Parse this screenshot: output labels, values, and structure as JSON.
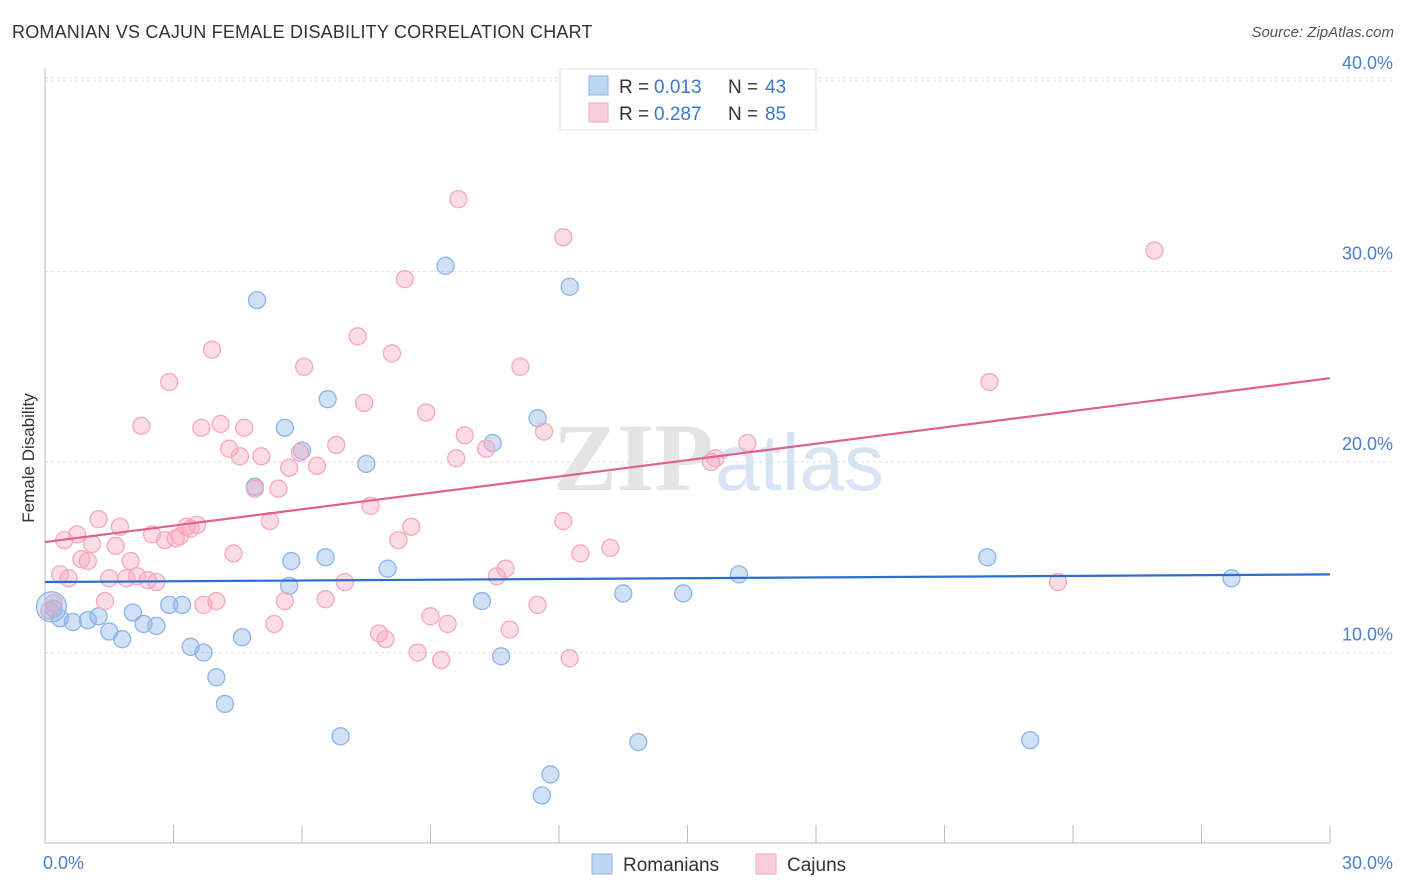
{
  "chart_data": {
    "type": "scatter",
    "title": "ROMANIAN VS CAJUN FEMALE DISABILITY CORRELATION CHART",
    "source": "Source: ZipAtlas.com",
    "ylabel": "Female Disability",
    "xlabel": "",
    "xlim": [
      0,
      30
    ],
    "ylim": [
      0,
      41
    ],
    "x_tick_labels": [
      "0.0%",
      "30.0%"
    ],
    "y_ticks": [
      10,
      20,
      30,
      40
    ],
    "y_tick_labels": [
      "10.0%",
      "20.0%",
      "30.0%",
      "40.0%"
    ],
    "grid": true,
    "legend_position": "top-center",
    "watermark": "ZIPatlas",
    "series": [
      {
        "name": "Romanians",
        "color": "#8ab4e8",
        "line_color": "#2a6fcf",
        "r_label": "R =",
        "r_value": "0.013",
        "n_label": "N =",
        "n_value": "43",
        "trend": {
          "x0": 0,
          "y0": 13.7,
          "x1": 30,
          "y1": 14.1
        },
        "points": [
          [
            0.2,
            12.3
          ],
          [
            0.35,
            11.8
          ],
          [
            0.65,
            11.6
          ],
          [
            1.0,
            11.7
          ],
          [
            1.25,
            11.9
          ],
          [
            1.5,
            11.1
          ],
          [
            1.8,
            10.7
          ],
          [
            2.05,
            12.1
          ],
          [
            2.3,
            11.5
          ],
          [
            2.6,
            11.4
          ],
          [
            2.9,
            12.5
          ],
          [
            3.2,
            12.5
          ],
          [
            3.4,
            10.3
          ],
          [
            3.7,
            10.0
          ],
          [
            4.0,
            8.7
          ],
          [
            4.2,
            7.3
          ],
          [
            4.6,
            10.8
          ],
          [
            4.9,
            18.7
          ],
          [
            4.95,
            28.5
          ],
          [
            5.6,
            21.8
          ],
          [
            5.75,
            14.8
          ],
          [
            5.7,
            13.5
          ],
          [
            6.0,
            20.6
          ],
          [
            6.55,
            15.0
          ],
          [
            6.9,
            5.6
          ],
          [
            6.6,
            23.3
          ],
          [
            7.5,
            19.9
          ],
          [
            8.0,
            14.4
          ],
          [
            9.35,
            30.3
          ],
          [
            10.2,
            12.7
          ],
          [
            10.45,
            21.0
          ],
          [
            10.65,
            9.8
          ],
          [
            11.5,
            22.3
          ],
          [
            11.8,
            3.6
          ],
          [
            11.6,
            2.5
          ],
          [
            12.25,
            29.2
          ],
          [
            13.5,
            13.1
          ],
          [
            13.85,
            5.3
          ],
          [
            14.9,
            13.1
          ],
          [
            16.2,
            14.1
          ],
          [
            22.0,
            15.0
          ],
          [
            23.0,
            5.4
          ],
          [
            27.7,
            13.9
          ]
        ]
      },
      {
        "name": "Cajuns",
        "color": "#f4a7be",
        "line_color": "#e0608c",
        "r_label": "R =",
        "r_value": "0.287",
        "n_label": "N =",
        "n_value": "85",
        "trend": {
          "x0": 0,
          "y0": 15.8,
          "x1": 30,
          "y1": 24.4
        },
        "points": [
          [
            0.2,
            12.6
          ],
          [
            0.35,
            14.1
          ],
          [
            0.45,
            15.9
          ],
          [
            0.55,
            13.9
          ],
          [
            0.75,
            16.2
          ],
          [
            0.85,
            14.9
          ],
          [
            1.0,
            14.8
          ],
          [
            1.1,
            15.7
          ],
          [
            1.25,
            17.0
          ],
          [
            1.4,
            12.7
          ],
          [
            1.5,
            13.9
          ],
          [
            1.65,
            15.6
          ],
          [
            1.75,
            16.6
          ],
          [
            1.9,
            13.9
          ],
          [
            2.0,
            14.8
          ],
          [
            2.15,
            14.0
          ],
          [
            2.25,
            21.9
          ],
          [
            2.4,
            13.8
          ],
          [
            2.5,
            16.2
          ],
          [
            2.6,
            13.7
          ],
          [
            2.8,
            15.9
          ],
          [
            2.9,
            24.2
          ],
          [
            3.05,
            16.0
          ],
          [
            3.15,
            16.1
          ],
          [
            3.3,
            16.6
          ],
          [
            3.4,
            16.5
          ],
          [
            3.55,
            16.7
          ],
          [
            3.65,
            21.8
          ],
          [
            3.7,
            12.5
          ],
          [
            3.9,
            25.9
          ],
          [
            4.0,
            12.7
          ],
          [
            4.1,
            22.0
          ],
          [
            4.3,
            20.7
          ],
          [
            4.4,
            15.2
          ],
          [
            4.55,
            20.3
          ],
          [
            4.65,
            21.8
          ],
          [
            4.9,
            18.6
          ],
          [
            5.05,
            20.3
          ],
          [
            5.25,
            16.9
          ],
          [
            5.45,
            18.6
          ],
          [
            5.35,
            11.5
          ],
          [
            5.6,
            12.7
          ],
          [
            5.7,
            19.7
          ],
          [
            5.95,
            20.5
          ],
          [
            6.05,
            25.0
          ],
          [
            6.35,
            19.8
          ],
          [
            6.55,
            12.8
          ],
          [
            6.8,
            20.9
          ],
          [
            7.0,
            13.7
          ],
          [
            7.3,
            26.6
          ],
          [
            7.45,
            23.1
          ],
          [
            7.6,
            17.7
          ],
          [
            7.8,
            11.0
          ],
          [
            7.95,
            10.7
          ],
          [
            8.1,
            25.7
          ],
          [
            8.25,
            15.9
          ],
          [
            8.4,
            29.6
          ],
          [
            8.55,
            16.6
          ],
          [
            8.7,
            10.0
          ],
          [
            8.9,
            22.6
          ],
          [
            9.0,
            11.9
          ],
          [
            9.25,
            9.6
          ],
          [
            9.4,
            11.5
          ],
          [
            9.6,
            20.2
          ],
          [
            9.8,
            21.4
          ],
          [
            9.65,
            33.8
          ],
          [
            10.3,
            20.7
          ],
          [
            10.55,
            14.0
          ],
          [
            10.75,
            14.4
          ],
          [
            10.85,
            11.2
          ],
          [
            11.1,
            25.0
          ],
          [
            11.5,
            12.5
          ],
          [
            11.65,
            21.6
          ],
          [
            12.1,
            16.9
          ],
          [
            12.25,
            9.7
          ],
          [
            12.1,
            31.8
          ],
          [
            12.5,
            15.2
          ],
          [
            13.2,
            15.5
          ],
          [
            15.55,
            20.0
          ],
          [
            15.65,
            20.2
          ],
          [
            16.4,
            21.0
          ],
          [
            22.05,
            24.2
          ],
          [
            23.65,
            13.7
          ],
          [
            25.9,
            31.1
          ],
          [
            0.1,
            12.2
          ]
        ]
      }
    ]
  }
}
